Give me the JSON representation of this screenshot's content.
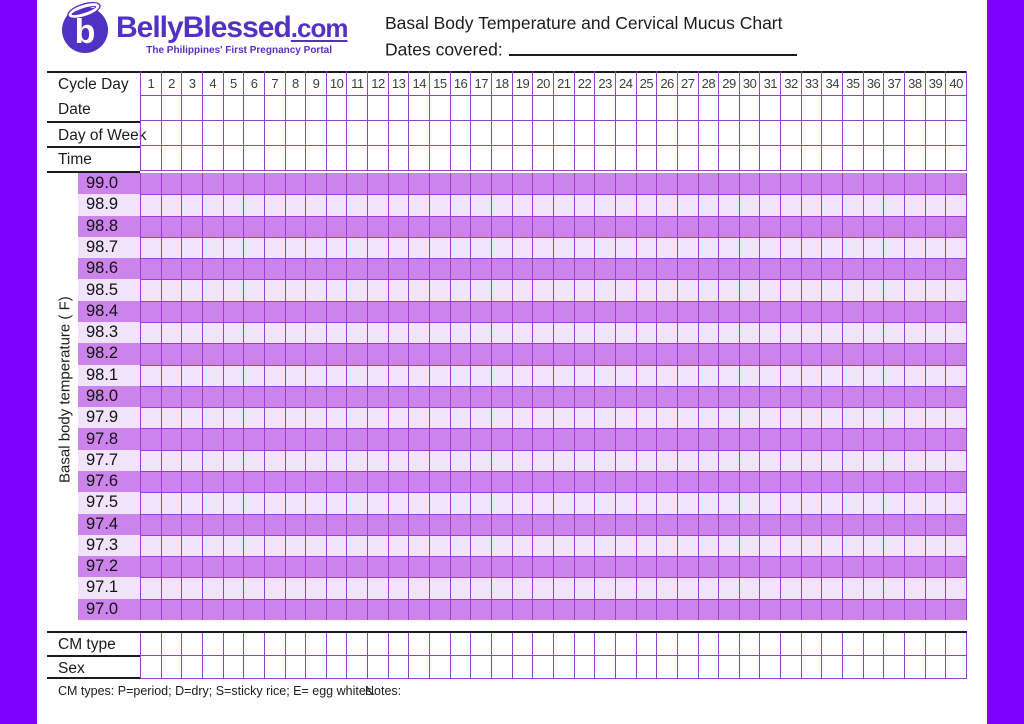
{
  "page": {
    "side_band_color": "#7f00ff",
    "background": "#ffffff"
  },
  "logo": {
    "mark_letter": "b",
    "brand": "BellyBlessed",
    "tld": ".com",
    "tagline": "The Philippines' First Pregnancy Portal",
    "purple": "#5232c4"
  },
  "header": {
    "title": "Basal Body Temperature and Cervical Mucus Chart",
    "dates_covered_label": "Dates covered:"
  },
  "grid": {
    "row_labels": {
      "cycle_day": "Cycle Day",
      "date": "Date",
      "day_of_week": "Day of Week",
      "time": "Time",
      "cm_type": "CM type",
      "sex": "Sex"
    },
    "axis_label": "Basal body temperature ( F)",
    "days": [
      1,
      2,
      3,
      4,
      5,
      6,
      7,
      8,
      9,
      10,
      11,
      12,
      13,
      14,
      15,
      16,
      17,
      18,
      19,
      20,
      21,
      22,
      23,
      24,
      25,
      26,
      27,
      28,
      29,
      30,
      31,
      32,
      33,
      34,
      35,
      36,
      37,
      38,
      39,
      40
    ],
    "temperatures": [
      "99.0",
      "98.9",
      "98.8",
      "98.7",
      "98.6",
      "98.5",
      "98.4",
      "98.3",
      "98.2",
      "98.1",
      "98.0",
      "97.9",
      "97.8",
      "97.7",
      "97.6",
      "97.5",
      "97.4",
      "97.3",
      "97.2",
      "97.1",
      "97.0"
    ],
    "colors": {
      "line": "#9b3fd2",
      "band_dark": "#cc84ec",
      "band_light": "#f1e3f9"
    }
  },
  "footer": {
    "cm_types_legend": "CM types: P=period; D=dry; S=sticky rice; E= egg whites.",
    "notes_label": "Notes:"
  }
}
